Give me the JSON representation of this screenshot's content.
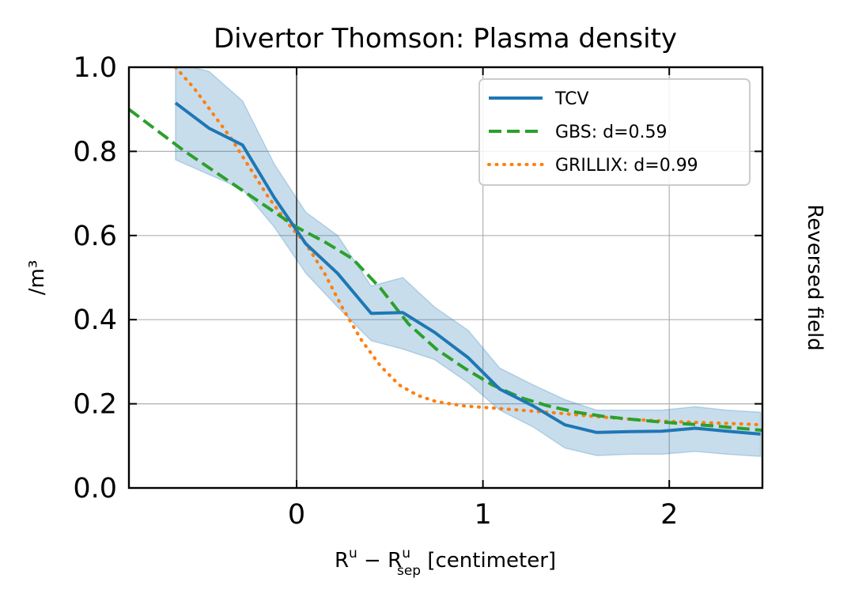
{
  "chart_data": {
    "type": "line",
    "title": "Divertor Thomson: Plasma density",
    "xlabel": "R^u − R^u_sep [centimeter]",
    "xlabel_parts": {
      "main": "R",
      "sup1": "u",
      "minus": " − ",
      "main2": "R",
      "sup2": "u",
      "sub2": "sep",
      "unit": " [centimeter]"
    },
    "ylabel": "/m³",
    "right_label": "Reversed field",
    "xlim": [
      -0.9,
      2.5
    ],
    "ylim": [
      0.0,
      1.0
    ],
    "xticks": [
      0,
      1,
      2
    ],
    "xtick_labels": [
      "0",
      "1",
      "2"
    ],
    "yticks": [
      0.0,
      0.2,
      0.4,
      0.6,
      0.8,
      1.0
    ],
    "ytick_labels": [
      "0.0",
      "0.2",
      "0.4",
      "0.6",
      "0.8",
      "1.0"
    ],
    "grid": true,
    "vline_x": 0,
    "legend_position": "upper right",
    "series": [
      {
        "name": "TCV",
        "style": "solid",
        "color": "#1f77b4",
        "x": [
          -0.65,
          -0.47,
          -0.29,
          -0.12,
          0.05,
          0.22,
          0.4,
          0.57,
          0.74,
          0.92,
          1.09,
          1.27,
          1.44,
          1.61,
          1.79,
          1.96,
          2.14,
          2.31,
          2.49
        ],
        "y": [
          0.915,
          0.855,
          0.815,
          0.69,
          0.58,
          0.51,
          0.415,
          0.417,
          0.37,
          0.31,
          0.235,
          0.195,
          0.15,
          0.132,
          0.134,
          0.135,
          0.142,
          0.135,
          0.128
        ],
        "band_upper": [
          1.01,
          0.99,
          0.92,
          0.77,
          0.655,
          0.6,
          0.48,
          0.5,
          0.43,
          0.375,
          0.285,
          0.245,
          0.21,
          0.185,
          0.185,
          0.185,
          0.193,
          0.185,
          0.18
        ],
        "band_lower": [
          0.78,
          0.745,
          0.71,
          0.62,
          0.51,
          0.43,
          0.35,
          0.33,
          0.305,
          0.25,
          0.185,
          0.145,
          0.095,
          0.077,
          0.08,
          0.08,
          0.087,
          0.08,
          0.075
        ]
      },
      {
        "name": "GBS: d=0.59",
        "style": "dashed",
        "color": "#2ca02c",
        "x": [
          -0.9,
          -0.75,
          -0.6,
          -0.45,
          -0.3,
          -0.15,
          0.0,
          0.15,
          0.3,
          0.45,
          0.6,
          0.75,
          0.9,
          1.05,
          1.2,
          1.35,
          1.5,
          1.65,
          1.8,
          1.95,
          2.1,
          2.25,
          2.4,
          2.5
        ],
        "y": [
          0.9,
          0.85,
          0.8,
          0.755,
          0.71,
          0.665,
          0.62,
          0.585,
          0.545,
          0.475,
          0.39,
          0.33,
          0.285,
          0.245,
          0.215,
          0.195,
          0.18,
          0.17,
          0.163,
          0.157,
          0.152,
          0.147,
          0.141,
          0.137
        ]
      },
      {
        "name": "GRILLIX: d=0.99",
        "style": "dotted",
        "color": "#ff7f0e",
        "x": [
          -0.65,
          -0.55,
          -0.45,
          -0.35,
          -0.25,
          -0.15,
          -0.05,
          0.05,
          0.15,
          0.25,
          0.35,
          0.45,
          0.55,
          0.65,
          0.75,
          0.9,
          1.05,
          1.2,
          1.4,
          1.6,
          1.8,
          2.0,
          2.2,
          2.4,
          2.5
        ],
        "y": [
          1.0,
          0.95,
          0.89,
          0.83,
          0.76,
          0.69,
          0.63,
          0.58,
          0.51,
          0.425,
          0.35,
          0.29,
          0.245,
          0.22,
          0.205,
          0.195,
          0.19,
          0.185,
          0.178,
          0.17,
          0.163,
          0.158,
          0.155,
          0.152,
          0.15
        ]
      }
    ]
  }
}
